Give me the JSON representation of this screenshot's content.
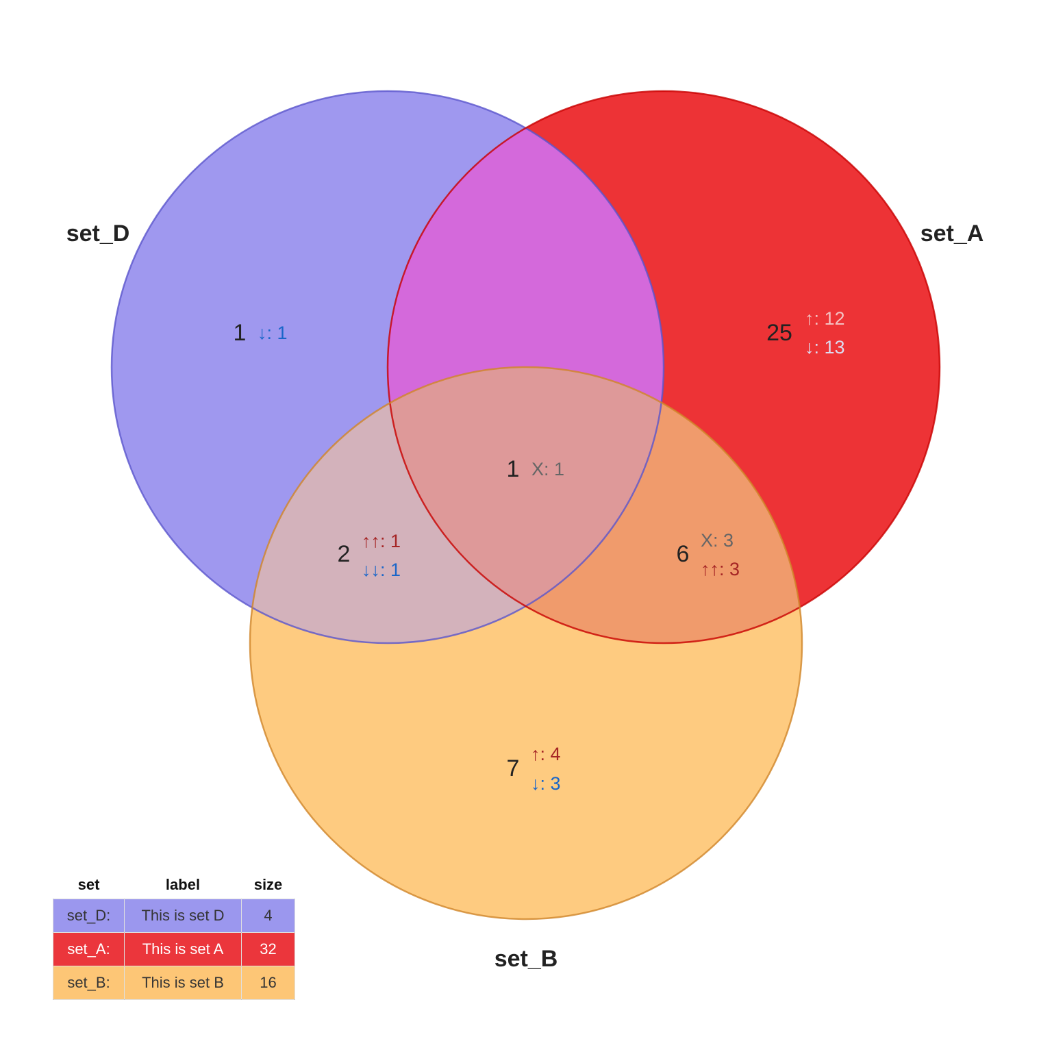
{
  "sets": [
    {
      "id": "set_D",
      "name": "set_D",
      "label": "This is set D",
      "size": 4,
      "color": "#8a85ec",
      "stroke": "#5a55cc",
      "text_color": "#111111"
    },
    {
      "id": "set_A",
      "name": "set_A",
      "label": "This is set A",
      "size": 32,
      "color": "#e8141b",
      "stroke": "#cc0000",
      "text_color": "#ffffff"
    },
    {
      "id": "set_B",
      "name": "set_B",
      "label": "This is set B",
      "size": 16,
      "color": "#fdbd5f",
      "stroke": "#d88e2c",
      "text_color": "#111111"
    }
  ],
  "regions": [
    {
      "id": "D_only",
      "sets": [
        "set_D"
      ],
      "count": "1",
      "details": [
        {
          "text": "↓: 1",
          "color": "#1a66c9"
        }
      ]
    },
    {
      "id": "A_only",
      "sets": [
        "set_A"
      ],
      "count": "25",
      "details": [
        {
          "text": "↑: 12",
          "color": "#f3c2c2"
        },
        {
          "text": "↓: 13",
          "color": "#dcdcf0"
        }
      ]
    },
    {
      "id": "D_A",
      "sets": [
        "set_D",
        "set_A"
      ],
      "count": "",
      "details": []
    },
    {
      "id": "D_A_B",
      "sets": [
        "set_D",
        "set_A",
        "set_B"
      ],
      "count": "1",
      "details": [
        {
          "text": "X: 1",
          "color": "#666666"
        }
      ]
    },
    {
      "id": "D_B",
      "sets": [
        "set_D",
        "set_B"
      ],
      "count": "2",
      "details": [
        {
          "text": "↑↑: 1",
          "color": "#a52525"
        },
        {
          "text": "↓↓: 1",
          "color": "#1a66c9"
        }
      ]
    },
    {
      "id": "A_B",
      "sets": [
        "set_A",
        "set_B"
      ],
      "count": "6",
      "details": [
        {
          "text": "X: 3",
          "color": "#666666"
        },
        {
          "text": "↑↑: 3",
          "color": "#a52525"
        }
      ]
    },
    {
      "id": "B_only",
      "sets": [
        "set_B"
      ],
      "count": "7",
      "details": [
        {
          "text": "↑: 4",
          "color": "#a52525"
        },
        {
          "text": "↓: 3",
          "color": "#1a66c9"
        }
      ]
    }
  ],
  "legend": {
    "headers": {
      "set": "set",
      "label": "label",
      "size": "size"
    },
    "rows": [
      {
        "set": "set_D:",
        "label": "This is set D",
        "size": "4"
      },
      {
        "set": "set_A:",
        "label": "This is set A",
        "size": "32"
      },
      {
        "set": "set_B:",
        "label": "This is set B",
        "size": "16"
      }
    ]
  }
}
